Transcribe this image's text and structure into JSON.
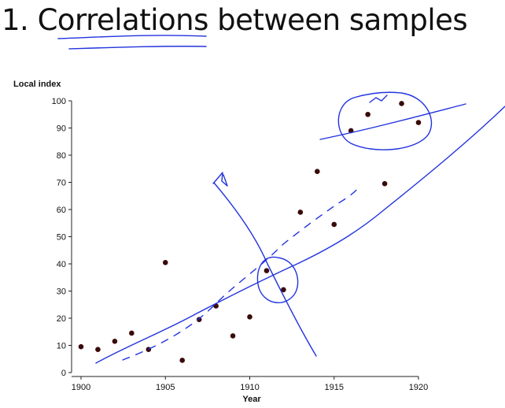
{
  "slide": {
    "title": "1. Correlations between samples"
  },
  "chart_data": {
    "type": "scatter",
    "title": "",
    "xlabel": "Year",
    "ylabel": "Local index",
    "xlim": [
      1900,
      1920
    ],
    "ylim": [
      0,
      100
    ],
    "xticks": [
      1900,
      1905,
      1910,
      1915,
      1920
    ],
    "yticks": [
      0,
      10,
      20,
      30,
      40,
      50,
      60,
      70,
      80,
      90,
      100
    ],
    "grid": false,
    "point_color": "#3a0a0a",
    "annotation_color": "#2233dd",
    "series": [
      {
        "x": [
          1900,
          1901,
          1902,
          1903,
          1904,
          1905,
          1906,
          1907,
          1908,
          1909,
          1910,
          1911,
          1912,
          1913,
          1914,
          1915,
          1916,
          1917,
          1918,
          1919,
          1920
        ],
        "y": [
          9.5,
          8.5,
          11.5,
          14.5,
          8.5,
          40.5,
          4.5,
          19.5,
          24.5,
          13.5,
          20.5,
          37.5,
          30.5,
          59,
          74,
          54.5,
          89,
          95,
          69.5,
          99,
          92
        ]
      }
    ]
  }
}
